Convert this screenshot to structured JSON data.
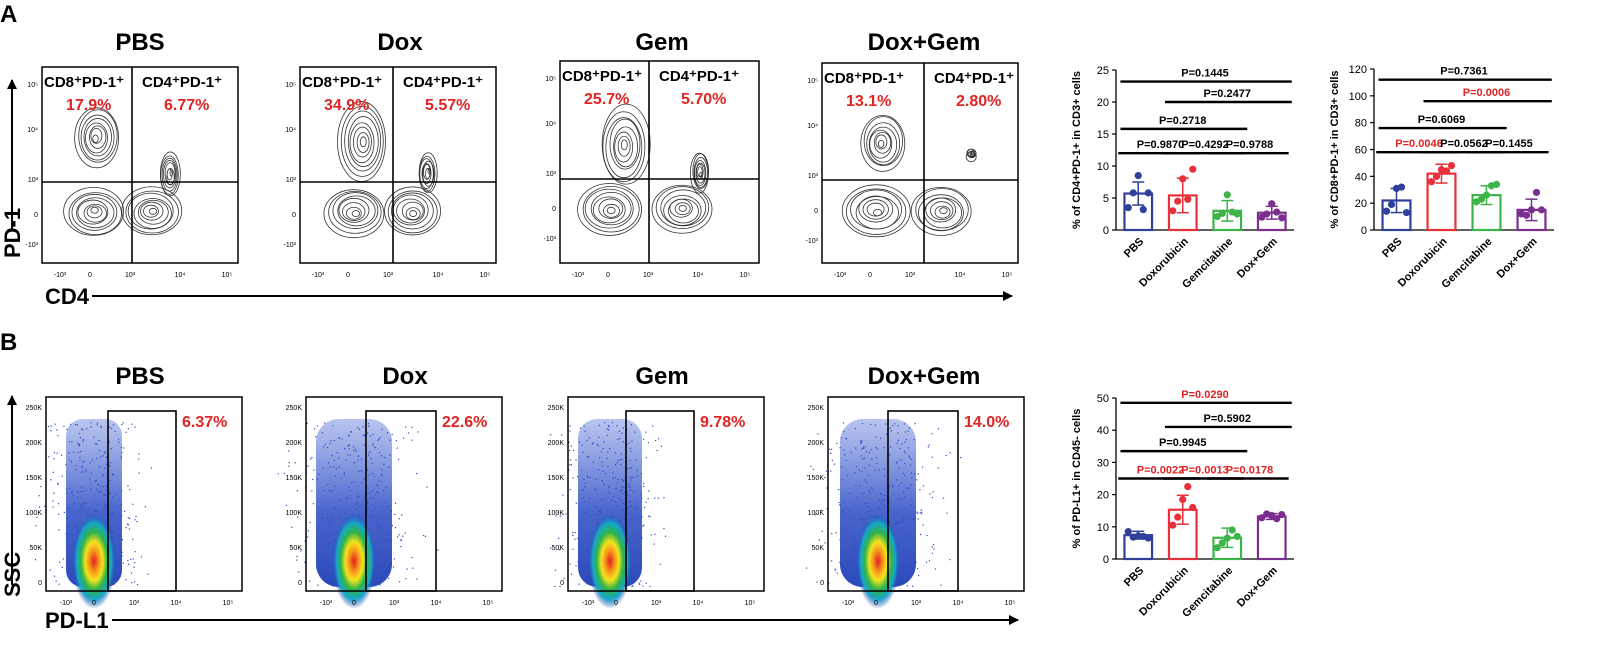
{
  "panel_a": {
    "letter": "A",
    "y_axis_label": "PD-1",
    "x_axis_label": "CD4",
    "gate_tick_labels": {
      "x": [
        "-10³",
        "0",
        "10³",
        "10⁴",
        "10⁵"
      ],
      "y": [
        "10⁵",
        "10⁴",
        "10³",
        "0",
        "-10³"
      ]
    },
    "gate_label_left": "CD8⁺PD-1⁺",
    "gate_label_right": "CD4⁺PD-1⁺",
    "flow_plots": [
      {
        "title": "PBS",
        "cd8_pd1_pct": "17.9%",
        "cd4_pd1_pct": "6.77%"
      },
      {
        "title": "Dox",
        "cd8_pd1_pct": "34.9%",
        "cd4_pd1_pct": "5.57%"
      },
      {
        "title": "Gem",
        "cd8_pd1_pct": "25.7%",
        "cd4_pd1_pct": "5.70%"
      },
      {
        "title": "Dox+Gem",
        "cd8_pd1_pct": "13.1%",
        "cd4_pd1_pct": "2.80%"
      }
    ]
  },
  "panel_b": {
    "letter": "B",
    "y_axis_label": "SSC",
    "x_axis_label": "PD-L1",
    "ssc_tick_labels": [
      "250K",
      "200K",
      "150K",
      "100K",
      "50K",
      "0"
    ],
    "pdl1_tick_labels": [
      "-10³",
      "0",
      "10³",
      "10⁴",
      "10⁵"
    ],
    "flow_plots": [
      {
        "title": "PBS",
        "pdl1_pct": "6.37%"
      },
      {
        "title": "Dox",
        "pdl1_pct": "22.6%"
      },
      {
        "title": "Gem",
        "pdl1_pct": "9.78%"
      },
      {
        "title": "Dox+Gem",
        "pdl1_pct": "14.0%"
      }
    ]
  },
  "colors": {
    "PBS": "#2f3f9a",
    "Doxorubicin": "#e8303a",
    "Gemcitabine": "#3db44a",
    "Dox+Gem": "#7a2e8e",
    "significant": "#e02424",
    "not_significant": "#000000"
  },
  "chart_data": [
    {
      "id": "cd4",
      "type": "bar",
      "ylabel": "% of CD4+PD-1+ in CD3+ cells",
      "ylim": [
        0,
        25
      ],
      "yticks": [
        0,
        5,
        10,
        15,
        20,
        25
      ],
      "categories": [
        "PBS",
        "Doxorubicin",
        "Gemcitabine",
        "Dox+Gem"
      ],
      "values": [
        5.7,
        5.4,
        3.0,
        2.7
      ],
      "errors": [
        1.8,
        2.7,
        1.6,
        1.0
      ],
      "points": [
        [
          3.5,
          5.8,
          8.5,
          3.2,
          5.8
        ],
        [
          3.0,
          4.5,
          8.0,
          4.8,
          9.5
        ],
        [
          2.1,
          2.6,
          5.5,
          2.8,
          2.5
        ],
        [
          2.0,
          2.5,
          4.1,
          2.8,
          1.9
        ]
      ],
      "comparisons": [
        {
          "a": 0,
          "b": 3,
          "y": 23.2,
          "label": "P=0.1445",
          "sig": false
        },
        {
          "a": 1,
          "b": 3,
          "y": 20.0,
          "label": "P=0.2477",
          "sig": false
        },
        {
          "a": 0,
          "b": 2,
          "y": 15.8,
          "label": "P=0.2718",
          "sig": false
        },
        {
          "a": 0,
          "b": 1,
          "y": 12.0,
          "label": "P=0.9870",
          "sig": false
        },
        {
          "a": 1,
          "b": 2,
          "y": 12.0,
          "label": "P=0.4292",
          "sig": false
        },
        {
          "a": 2,
          "b": 3,
          "y": 12.0,
          "label": "P=0.9788",
          "sig": false
        }
      ]
    },
    {
      "id": "cd8",
      "type": "bar",
      "ylabel": "% of CD8+PD-1+ in CD3+ cells",
      "ylim": [
        0,
        120
      ],
      "yticks": [
        0,
        20,
        40,
        60,
        80,
        100,
        120
      ],
      "categories": [
        "PBS",
        "Doxorubicin",
        "Gemcitabine",
        "Dox+Gem"
      ],
      "values": [
        22,
        42,
        26,
        15
      ],
      "errors": [
        9,
        7,
        7,
        8
      ],
      "points": [
        [
          14,
          19,
          31,
          32,
          13
        ],
        [
          36,
          40,
          45,
          44,
          48
        ],
        [
          21,
          23,
          26,
          33,
          34
        ],
        [
          12,
          11,
          15,
          28,
          15
        ]
      ],
      "comparisons": [
        {
          "a": 0,
          "b": 3,
          "y": 112,
          "label": "P=0.7361",
          "sig": false
        },
        {
          "a": 1,
          "b": 3,
          "y": 96,
          "label": "P=0.0006",
          "sig": true
        },
        {
          "a": 0,
          "b": 2,
          "y": 76,
          "label": "P=0.6069",
          "sig": false
        },
        {
          "a": 0,
          "b": 1,
          "y": 58,
          "label": "P=0.0046",
          "sig": true
        },
        {
          "a": 1,
          "b": 2,
          "y": 58,
          "label": "P=0.0562",
          "sig": false
        },
        {
          "a": 2,
          "b": 3,
          "y": 58,
          "label": "P=0.1455",
          "sig": false
        }
      ]
    },
    {
      "id": "pdl1",
      "type": "bar",
      "ylabel": "% of PD-L1+ in CD45- cells",
      "ylim": [
        0,
        50
      ],
      "yticks": [
        0,
        10,
        20,
        30,
        40,
        50
      ],
      "categories": [
        "PBS",
        "Doxorubicin",
        "Gemcitabine",
        "Dox+Gem"
      ],
      "values": [
        7.4,
        15.3,
        6.6,
        13.2
      ],
      "errors": [
        1.2,
        4.5,
        3.0,
        0.9
      ],
      "points": [
        [
          8.5,
          6.8,
          7.2,
          7.0,
          6.5
        ],
        [
          10.5,
          13.0,
          18.5,
          22.5,
          16.0
        ],
        [
          3.5,
          5.0,
          6.5,
          9.0,
          7.0
        ],
        [
          12.8,
          14.0,
          13.5,
          12.5,
          13.8
        ]
      ],
      "comparisons": [
        {
          "a": 0,
          "b": 3,
          "y": 48.5,
          "label": "P=0.0290",
          "sig": true
        },
        {
          "a": 1,
          "b": 3,
          "y": 41.0,
          "label": "P=0.5902",
          "sig": false
        },
        {
          "a": 0,
          "b": 2,
          "y": 33.5,
          "label": "P=0.9945",
          "sig": false
        },
        {
          "a": 0,
          "b": 1,
          "y": 25.0,
          "label": "P=0.0022",
          "sig": true
        },
        {
          "a": 1,
          "b": 2,
          "y": 25.0,
          "label": "P=0.0013",
          "sig": true
        },
        {
          "a": 2,
          "b": 3,
          "y": 25.0,
          "label": "P=0.0178",
          "sig": true
        }
      ]
    }
  ]
}
